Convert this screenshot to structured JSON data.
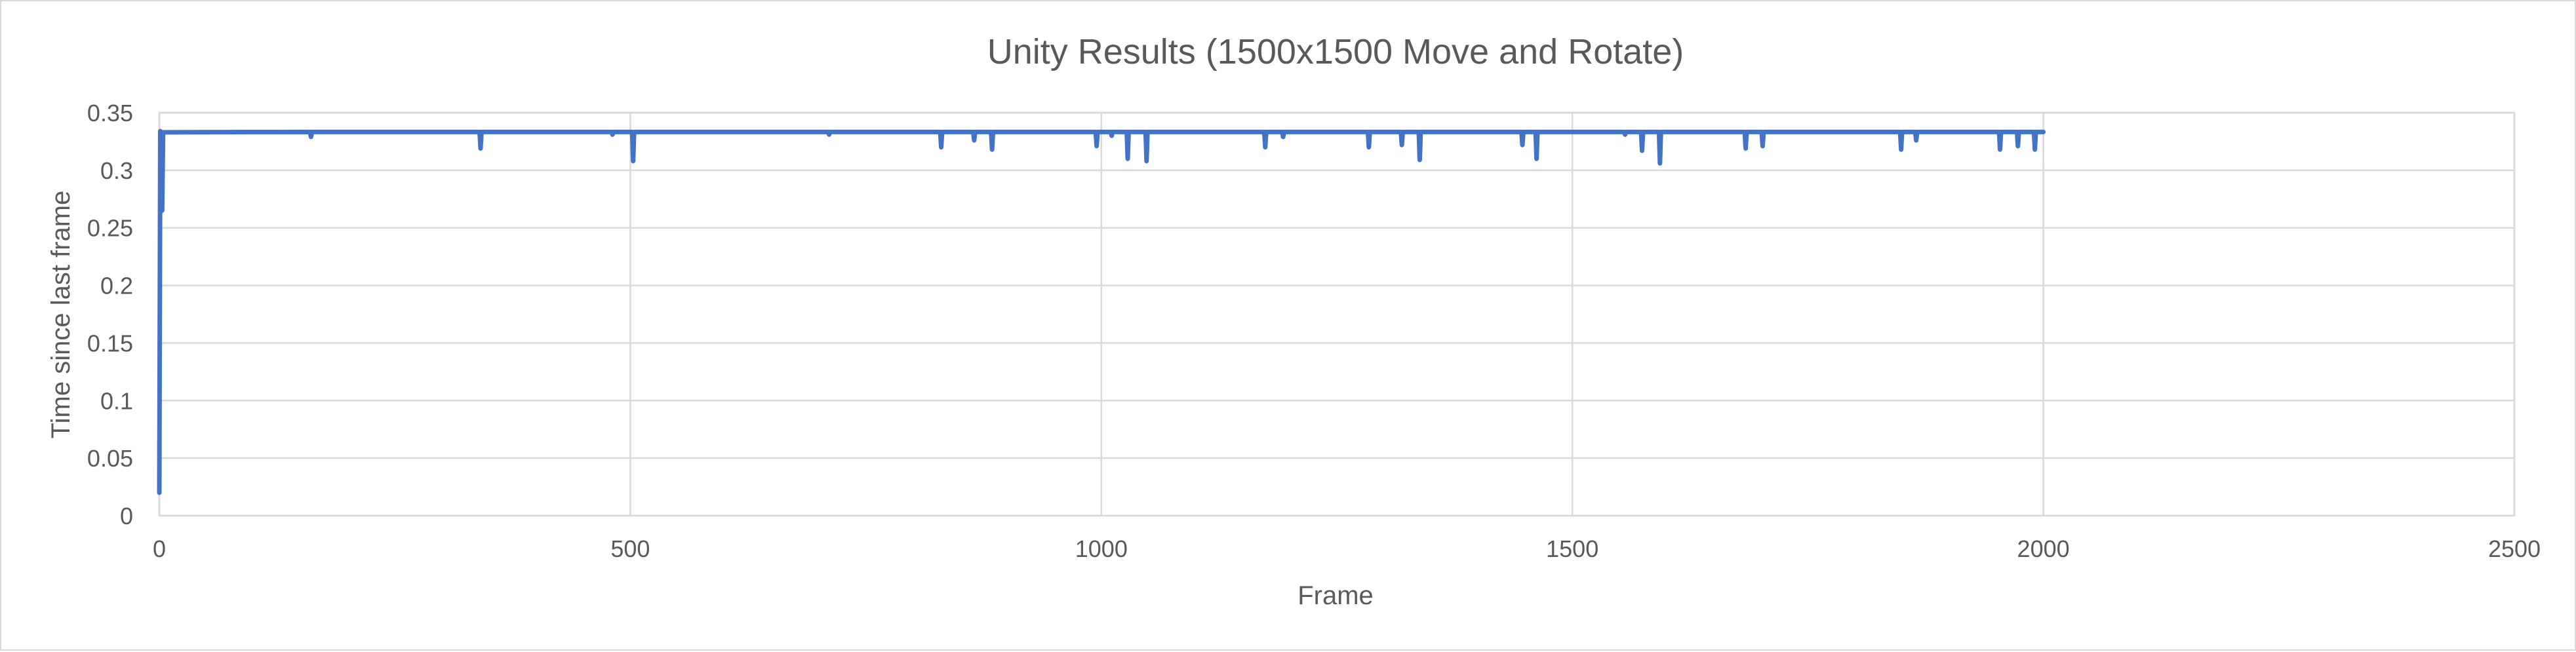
{
  "chart_data": {
    "type": "line",
    "title": "Unity Results (1500x1500 Move and Rotate)",
    "xlabel": "Frame",
    "ylabel": "Time since last frame",
    "xlim": [
      0,
      2500
    ],
    "ylim": [
      0,
      0.35
    ],
    "x_ticks": [
      "0",
      "500",
      "1000",
      "1500",
      "2000",
      "2500"
    ],
    "x_tick_values": [
      0,
      500,
      1000,
      1500,
      2000,
      2500
    ],
    "y_ticks": [
      "0",
      "0.05",
      "0.1",
      "0.15",
      "0.2",
      "0.25",
      "0.3",
      "0.35"
    ],
    "y_tick_values": [
      0,
      0.05,
      0.1,
      0.15,
      0.2,
      0.25,
      0.3,
      0.35
    ],
    "grid": true,
    "legend": "none",
    "series_color": "#4472C4",
    "series": [
      {
        "points": [
          [
            0,
            0.02
          ],
          [
            1,
            0.334
          ],
          [
            2,
            0.333
          ],
          [
            3,
            0.265
          ],
          [
            4,
            0.333
          ],
          [
            5,
            0.333
          ],
          [
            160,
            0.3333
          ],
          [
            161,
            0.329
          ],
          [
            162,
            0.3333
          ],
          [
            340,
            0.3333
          ],
          [
            341,
            0.319
          ],
          [
            342,
            0.3333
          ],
          [
            480,
            0.3333
          ],
          [
            481,
            0.331
          ],
          [
            482,
            0.3333
          ],
          [
            502,
            0.3333
          ],
          [
            503,
            0.308
          ],
          [
            504,
            0.3333
          ],
          [
            710,
            0.3333
          ],
          [
            711,
            0.331
          ],
          [
            712,
            0.3333
          ],
          [
            829,
            0.3333
          ],
          [
            830,
            0.32
          ],
          [
            831,
            0.3333
          ],
          [
            864,
            0.3333
          ],
          [
            865,
            0.326
          ],
          [
            866,
            0.3333
          ],
          [
            883,
            0.3333
          ],
          [
            884,
            0.318
          ],
          [
            885,
            0.3333
          ],
          [
            994,
            0.3333
          ],
          [
            995,
            0.321
          ],
          [
            996,
            0.3333
          ],
          [
            1010,
            0.3333
          ],
          [
            1011,
            0.33
          ],
          [
            1012,
            0.3333
          ],
          [
            1027,
            0.3333
          ],
          [
            1028,
            0.31
          ],
          [
            1029,
            0.3333
          ],
          [
            1047,
            0.3333
          ],
          [
            1048,
            0.308
          ],
          [
            1049,
            0.3333
          ],
          [
            1173,
            0.3333
          ],
          [
            1174,
            0.32
          ],
          [
            1175,
            0.3333
          ],
          [
            1192,
            0.3333
          ],
          [
            1193,
            0.329
          ],
          [
            1194,
            0.3333
          ],
          [
            1283,
            0.3333
          ],
          [
            1284,
            0.32
          ],
          [
            1285,
            0.3333
          ],
          [
            1318,
            0.3333
          ],
          [
            1319,
            0.322
          ],
          [
            1320,
            0.3333
          ],
          [
            1337,
            0.3333
          ],
          [
            1338,
            0.309
          ],
          [
            1339,
            0.3333
          ],
          [
            1446,
            0.3333
          ],
          [
            1447,
            0.322
          ],
          [
            1448,
            0.3333
          ],
          [
            1461,
            0.3333
          ],
          [
            1462,
            0.31
          ],
          [
            1463,
            0.3333
          ],
          [
            1555,
            0.3333
          ],
          [
            1556,
            0.331
          ],
          [
            1557,
            0.3333
          ],
          [
            1573,
            0.3333
          ],
          [
            1574,
            0.317
          ],
          [
            1575,
            0.3333
          ],
          [
            1592,
            0.3333
          ],
          [
            1593,
            0.306
          ],
          [
            1594,
            0.3333
          ],
          [
            1683,
            0.3333
          ],
          [
            1684,
            0.319
          ],
          [
            1685,
            0.3333
          ],
          [
            1701,
            0.3333
          ],
          [
            1702,
            0.321
          ],
          [
            1703,
            0.3333
          ],
          [
            1848,
            0.3333
          ],
          [
            1849,
            0.318
          ],
          [
            1850,
            0.3333
          ],
          [
            1864,
            0.3333
          ],
          [
            1865,
            0.326
          ],
          [
            1866,
            0.3333
          ],
          [
            1953,
            0.3333
          ],
          [
            1954,
            0.318
          ],
          [
            1955,
            0.3333
          ],
          [
            1972,
            0.3333
          ],
          [
            1973,
            0.321
          ],
          [
            1974,
            0.3333
          ],
          [
            1990,
            0.3333
          ],
          [
            1991,
            0.318
          ],
          [
            1992,
            0.3333
          ],
          [
            2000,
            0.3333
          ]
        ]
      }
    ]
  }
}
